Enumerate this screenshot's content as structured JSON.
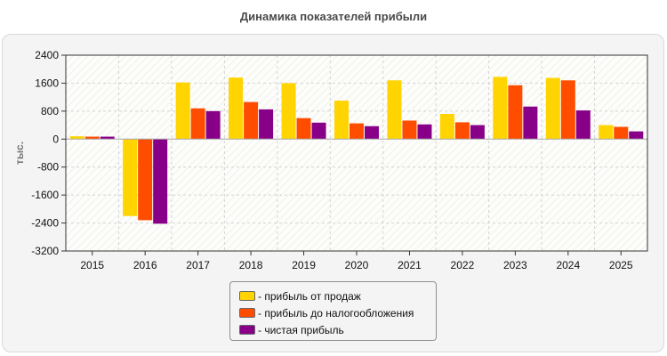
{
  "chart_data": {
    "type": "bar",
    "title": "Динамика показателей прибыли",
    "ylabel": "тыс.",
    "xlabel": "",
    "categories": [
      "2015",
      "2016",
      "2017",
      "2018",
      "2019",
      "2020",
      "2021",
      "2022",
      "2023",
      "2024",
      "2025"
    ],
    "ylim": [
      -3200,
      2400
    ],
    "yticks": [
      2400,
      1600,
      800,
      0,
      -800,
      -1600,
      -2400,
      -3200
    ],
    "grid": true,
    "legend_position": "bottom-center",
    "series": [
      {
        "name": "- прибыль от продаж",
        "color": "#FFD400",
        "values": [
          80,
          -2200,
          1620,
          1760,
          1600,
          1100,
          1680,
          720,
          1780,
          1750,
          400
        ]
      },
      {
        "name": "- прибыль до налогообложения",
        "color": "#FF4D00",
        "values": [
          70,
          -2320,
          880,
          1060,
          600,
          450,
          530,
          480,
          1540,
          1680,
          350
        ]
      },
      {
        "name": "- чистая прибыль",
        "color": "#880088",
        "values": [
          70,
          -2420,
          800,
          850,
          470,
          370,
          420,
          400,
          930,
          820,
          220
        ]
      }
    ]
  }
}
